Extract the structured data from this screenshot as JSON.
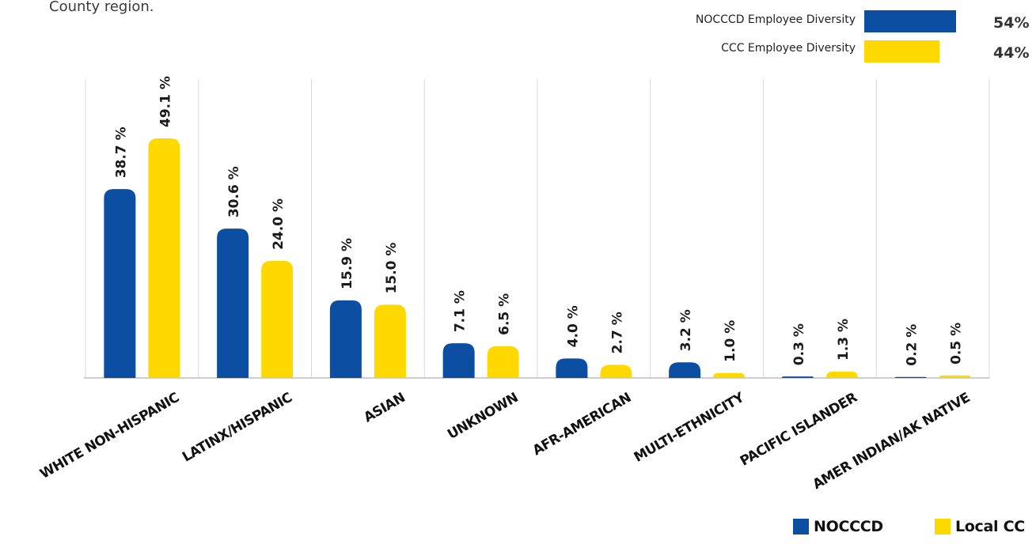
{
  "intro_text": "County region.",
  "top_legend": [
    {
      "label": "NOCCCD Employee Diversity",
      "percent": "54%",
      "value": 54,
      "color": "#0b4ea2"
    },
    {
      "label": "CCC Employee Diversity",
      "percent": "44%",
      "value": 44,
      "color": "#ffd800"
    }
  ],
  "chart_data": {
    "type": "bar",
    "categories": [
      "WHITE NON-HISPANIC",
      "LATINX/HISPANIC",
      "ASIAN",
      "UNKNOWN",
      "AFR-AMERICAN",
      "MULTI-ETHNICITY",
      "PACIFIC ISLANDER",
      "AMER INDIAN/AK NATIVE"
    ],
    "series": [
      {
        "name": "NOCCCD",
        "color": "#0b4ea2",
        "values": [
          38.7,
          30.6,
          15.9,
          7.1,
          4.0,
          3.2,
          0.3,
          0.2
        ],
        "labels": [
          "38.7 %",
          "30.6 %",
          "15.9 %",
          "7.1 %",
          "4.0 %",
          "3.2 %",
          "0.3 %",
          "0.2 %"
        ]
      },
      {
        "name": "Local CC",
        "color": "#ffd800",
        "values": [
          49.1,
          24.0,
          15.0,
          6.5,
          2.7,
          1.0,
          1.3,
          0.5
        ],
        "labels": [
          "49.1 %",
          "24.0 %",
          "15.0 %",
          "6.5 %",
          "2.7 %",
          "1.0 %",
          "1.3 %",
          "0.5 %"
        ]
      }
    ],
    "ylim": [
      0,
      50
    ],
    "grid": "vertical separators",
    "legend": "bottom-right"
  }
}
